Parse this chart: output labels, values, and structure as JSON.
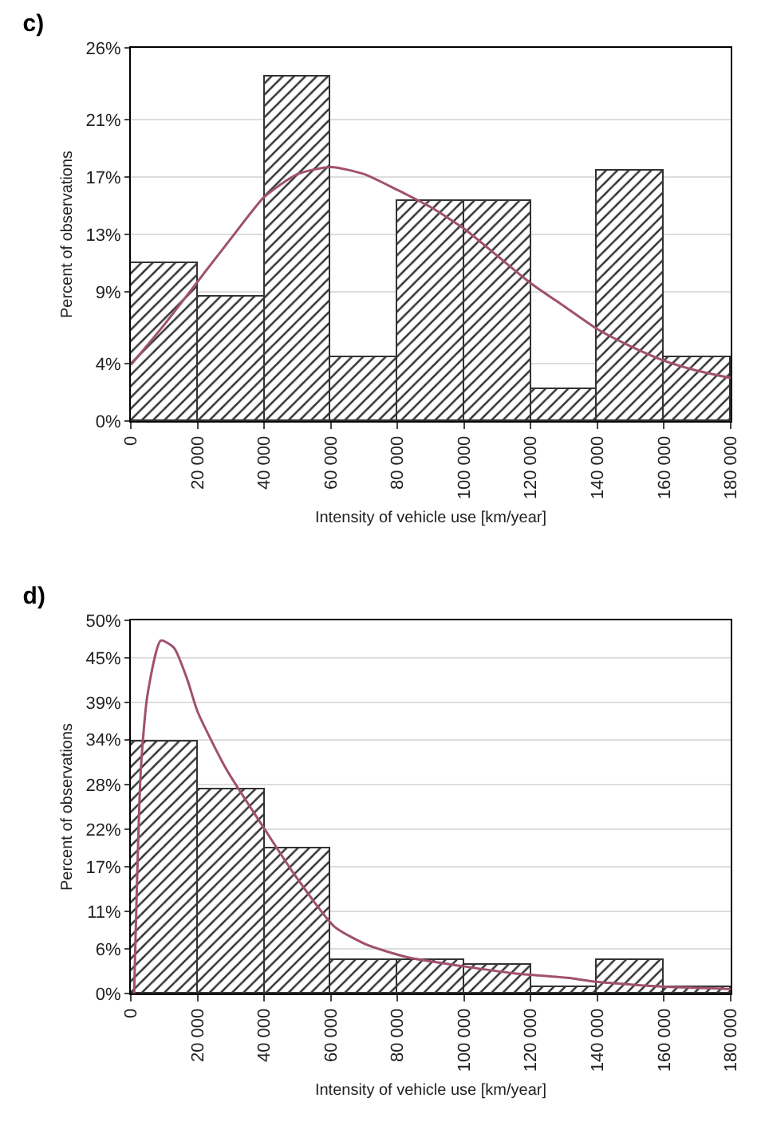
{
  "chart_data": [
    {
      "type": "histogram",
      "title": "c)",
      "xlabel": "Intensity of vehicle use [km/year]",
      "ylabel": "Percent of observations",
      "bins": [
        0,
        20000,
        40000,
        60000,
        80000,
        100000,
        120000,
        140000,
        160000,
        180000
      ],
      "series": [
        {
          "color": "#333333",
          "values": [
            11,
            8.7,
            24,
            4.4,
            15.3,
            15.3,
            2.2,
            17.4,
            4.4
          ]
        },
        {
          "type": "line",
          "color": "#a05070",
          "x": [
            0,
            10000,
            20000,
            30000,
            40000,
            50000,
            60000,
            70000,
            80000,
            90000,
            100000,
            110000,
            120000,
            130000,
            140000,
            150000,
            160000,
            170000,
            180000
          ],
          "values": [
            3.9,
            6.7,
            9.7,
            12.7,
            15.6,
            17.2,
            17.7,
            17.2,
            16.1,
            14.9,
            13.4,
            11.5,
            9.6,
            8.0,
            6.4,
            5.2,
            4.2,
            3.5,
            3.0
          ]
        }
      ],
      "xlim": [
        0,
        180000
      ],
      "xticks": [
        0,
        {
          "value": 20000,
          "label": "20 000"
        },
        {
          "value": 40000,
          "label": "40 000"
        },
        {
          "value": 60000,
          "label": "60 000"
        },
        {
          "value": 80000,
          "label": "80 000"
        },
        {
          "value": 100000,
          "label": "100 000"
        },
        {
          "value": 120000,
          "label": "120 000"
        },
        {
          "value": 140000,
          "label": "140 000"
        },
        {
          "value": 160000,
          "label": "160 000"
        },
        {
          "value": 180000,
          "label": "180 000"
        }
      ],
      "ylim": [
        0,
        26
      ],
      "yticks": [
        {
          "value": 0,
          "label": "0%"
        },
        {
          "value": 4,
          "label": "4%"
        },
        {
          "value": 9,
          "label": "9%"
        },
        {
          "value": 13,
          "label": "13%"
        },
        {
          "value": 17,
          "label": "17%"
        },
        {
          "value": 21,
          "label": "21%"
        },
        {
          "value": 26,
          "label": "26%"
        }
      ],
      "grid": "y"
    },
    {
      "type": "histogram",
      "title": "d)",
      "xlabel": "Intensity of vehicle use [km/year]",
      "ylabel": "Percent of observations",
      "bins": [
        0,
        20000,
        40000,
        60000,
        80000,
        100000,
        120000,
        140000,
        160000,
        180000
      ],
      "series": [
        {
          "color": "#333333",
          "values": [
            33.8,
            27.4,
            19.5,
            4.4,
            4.4,
            3.9,
            0.8,
            4.4,
            0.9
          ]
        },
        {
          "type": "line",
          "color": "#a05070",
          "x": [
            1000,
            3000,
            5000,
            9000,
            13000,
            17000,
            20000,
            28600,
            39600,
            49000,
            61000,
            71000,
            83600,
            99000,
            115000,
            131000,
            139000,
            150000,
            160700,
            180000
          ],
          "values": [
            0,
            30,
            40,
            47.3,
            46.3,
            42,
            37.8,
            30.1,
            22.4,
            16,
            9,
            6.5,
            4.8,
            3.7,
            2.7,
            2.1,
            1.6,
            1.2,
            0.9,
            0.6
          ]
        }
      ],
      "xlim": [
        0,
        180000
      ],
      "xticks": [
        0,
        {
          "value": 20000,
          "label": "20 000"
        },
        {
          "value": 40000,
          "label": "40 000"
        },
        {
          "value": 60000,
          "label": "60 000"
        },
        {
          "value": 80000,
          "label": "80 000"
        },
        {
          "value": 100000,
          "label": "100 000"
        },
        {
          "value": 120000,
          "label": "120 000"
        },
        {
          "value": 140000,
          "label": "140 000"
        },
        {
          "value": 160000,
          "label": "160 000"
        },
        {
          "value": 180000,
          "label": "180 000"
        }
      ],
      "ylim": [
        0,
        50
      ],
      "yticks": [
        {
          "value": 0,
          "label": "0%"
        },
        {
          "value": 6,
          "label": "6%"
        },
        {
          "value": 11,
          "label": "11%"
        },
        {
          "value": 17,
          "label": "17%"
        },
        {
          "value": 22,
          "label": "22%"
        },
        {
          "value": 28,
          "label": "28%"
        },
        {
          "value": 34,
          "label": "34%"
        },
        {
          "value": 39,
          "label": "39%"
        },
        {
          "value": 45,
          "label": "45%"
        },
        {
          "value": 50,
          "label": "50%"
        }
      ],
      "grid": "y"
    }
  ]
}
